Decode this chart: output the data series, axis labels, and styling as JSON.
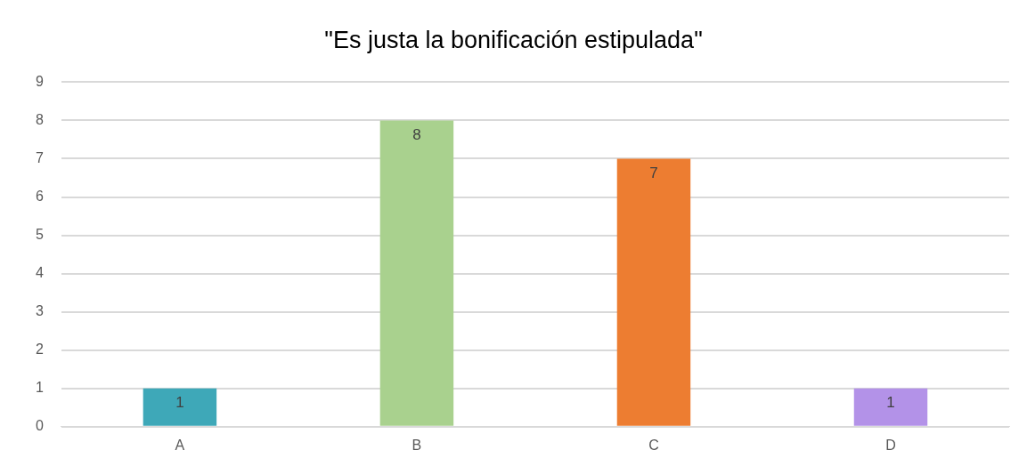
{
  "chart_data": {
    "type": "bar",
    "title": "\"Es justa la bonificación estipulada\"",
    "categories": [
      "A",
      "B",
      "C",
      "D"
    ],
    "values": [
      1,
      8,
      7,
      1
    ],
    "colors": [
      "#3ea8b8",
      "#a9d18e",
      "#ed7d31",
      "#b392e8"
    ],
    "ylim": [
      0,
      9
    ],
    "yticks": [
      0,
      1,
      2,
      3,
      4,
      5,
      6,
      7,
      8,
      9
    ],
    "grid": "y",
    "data_labels": true
  }
}
